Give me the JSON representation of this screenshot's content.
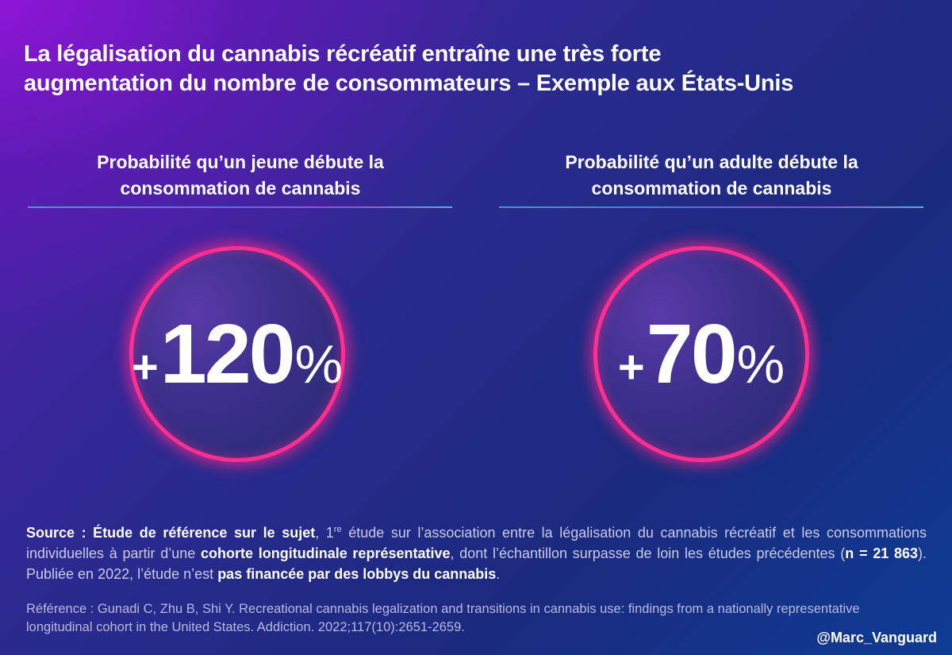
{
  "title": {
    "line1": "La légalisation du cannabis récréatif entraîne une très forte",
    "line2": "augmentation du nombre de consommateurs – Exemple aux États-Unis"
  },
  "stats": {
    "youth": {
      "label_line1": "Probabilité qu’un jeune débute la",
      "label_line2": "consommation de cannabis",
      "sign": "+",
      "number": "120",
      "percent": "%"
    },
    "adult": {
      "label_line1": "Probabilité qu’un adulte débute la",
      "label_line2": "consommation de cannabis",
      "sign": "+",
      "number": "70",
      "percent": "%"
    }
  },
  "source": {
    "label": "Source : Étude de référence sur le sujet",
    "t1": ", 1",
    "sup": "re",
    "t2": " étude sur l’association entre la légalisation du cannabis récréatif et les consommations individuelles à partir d’une ",
    "b_cohort": "cohorte longitudinale représentative",
    "t3": ", dont l’échantillon surpasse de loin les études précédentes (",
    "b_n": "n = 21 863",
    "t4": "). Publiée en 2022, l’étude n’est ",
    "b_funding": "pas financée par des lobbys du cannabis",
    "t5": "."
  },
  "reference": "Référence : Gunadi C, Zhu B, Shi Y. Recreational cannabis legalization and transitions in cannabis use: findings from a nationally representative longitudinal cohort in the United States. Addiction. 2022;117(10):2651-2659.",
  "handle": "@Marc_Vanguard",
  "colors": {
    "circle_border": "#ff2f8f",
    "rule_start": "#2fb9d8",
    "rule_end": "#b94fd8"
  }
}
